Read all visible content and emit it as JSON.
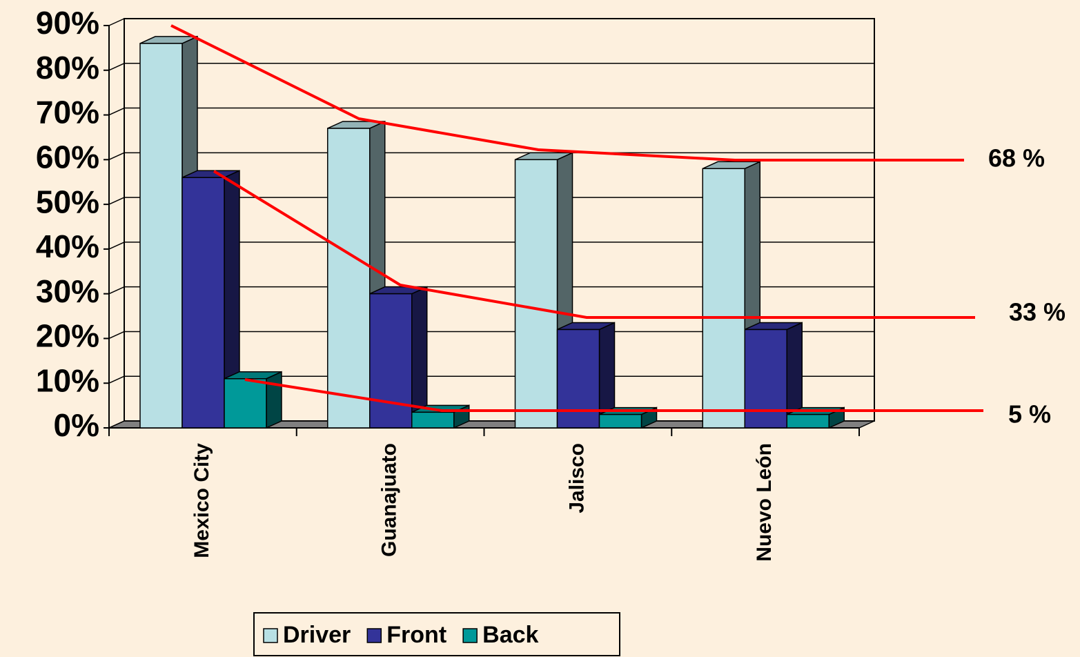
{
  "chart_data": {
    "type": "bar3d",
    "categories": [
      "Mexico City",
      "Guanajuato",
      "Jalisco",
      "Nuevo León"
    ],
    "series": [
      {
        "name": "Driver",
        "color": "#b8e0e4",
        "values": [
          86,
          67,
          60,
          58
        ]
      },
      {
        "name": "Front",
        "color": "#333399",
        "values": [
          56,
          30,
          22,
          22
        ]
      },
      {
        "name": "Back",
        "color": "#009999",
        "values": [
          11,
          3.5,
          3,
          3
        ]
      }
    ],
    "ylim": [
      0,
      90
    ],
    "yticks": [
      {
        "value": 0,
        "label": "0%"
      },
      {
        "value": 10,
        "label": "10%"
      },
      {
        "value": 20,
        "label": "20%"
      },
      {
        "value": 30,
        "label": "30%"
      },
      {
        "value": 40,
        "label": "40%"
      },
      {
        "value": 50,
        "label": "50%"
      },
      {
        "value": 60,
        "label": "60%"
      },
      {
        "value": 70,
        "label": "70%"
      },
      {
        "value": 80,
        "label": "80%"
      },
      {
        "value": 90,
        "label": "90%"
      }
    ],
    "grid": true,
    "annotations": [
      "68 %",
      "33 %",
      "5 %"
    ]
  }
}
